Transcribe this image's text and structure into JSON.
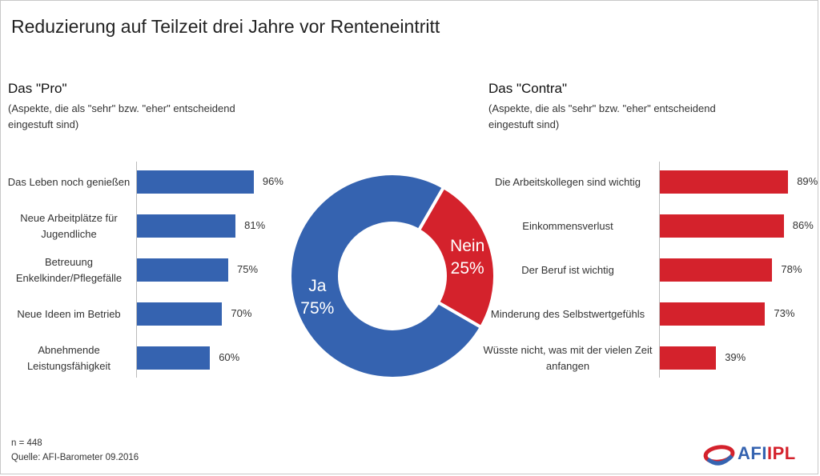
{
  "title": "Reduzierung auf Teilzeit drei Jahre vor Renteneintritt",
  "colors": {
    "pro": "#3563b0",
    "contra": "#d4222c",
    "axis": "#bbbbbb"
  },
  "chart_data": [
    {
      "type": "bar",
      "orientation": "horizontal",
      "title": "Das \"Pro\"",
      "subtitle": "(Aspekte, die als \"sehr\" bzw. \"eher\" entscheidend eingestuft sind)",
      "categories": [
        "Das Leben noch genießen",
        "Neue Arbeitplätze für Jugendliche",
        "Betreuung Enkelkinder/Pflegefälle",
        "Neue Ideen im Betrieb",
        "Abnehmende Leistungsfähigkeit"
      ],
      "values": [
        96,
        81,
        75,
        70,
        60
      ],
      "value_labels": [
        "96%",
        "81%",
        "75%",
        "70%",
        "60%"
      ],
      "unit": "%",
      "xlim": [
        0,
        100
      ]
    },
    {
      "type": "pie",
      "style": "donut",
      "categories": [
        "Ja",
        "Nein"
      ],
      "values": [
        75,
        25
      ],
      "value_labels": [
        "75%",
        "25%"
      ],
      "unit": "%"
    },
    {
      "type": "bar",
      "orientation": "horizontal",
      "title": "Das \"Contra\"",
      "subtitle": "(Aspekte, die als \"sehr\" bzw. \"eher\" entscheidend eingestuft sind)",
      "categories": [
        "Die Arbeitskollegen sind wichtig",
        "Einkommensverlust",
        "Der Beruf ist wichtig",
        "Minderung des Selbstwertgefühls",
        "Wüsste nicht, was mit der vielen Zeit anfangen"
      ],
      "values": [
        89,
        86,
        78,
        73,
        39
      ],
      "value_labels": [
        "89%",
        "86%",
        "78%",
        "73%",
        "39%"
      ],
      "unit": "%",
      "xlim": [
        0,
        100
      ]
    }
  ],
  "footer": {
    "sample": "n = 448",
    "source": "Quelle: AFI-Barometer 09.2016"
  },
  "logo": {
    "text_a": "AFI",
    "text_b": "IPL"
  }
}
